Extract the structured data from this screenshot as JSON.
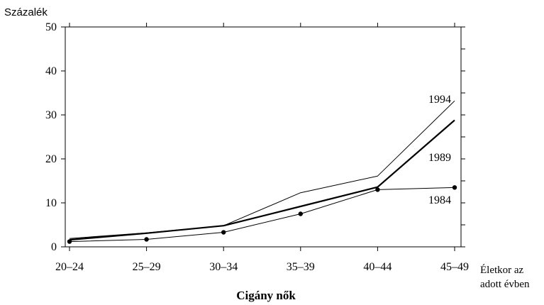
{
  "chart_data": {
    "type": "line",
    "title": "Cigány nők",
    "ylabel": "Százalék",
    "xlabel": [
      "Életkor az",
      "adott évben"
    ],
    "categories": [
      "20–24",
      "25–29",
      "30–34",
      "35–39",
      "40–44",
      "45–49"
    ],
    "ylim": [
      0,
      50
    ],
    "yticks": [
      0,
      10,
      20,
      30,
      40,
      50
    ],
    "grid": false,
    "series": [
      {
        "name": "1994",
        "values": [
          1.9,
          3.2,
          4.8,
          12.3,
          16.1,
          33.2
        ],
        "style": "thin",
        "markers": false
      },
      {
        "name": "1989",
        "values": [
          1.6,
          3.1,
          4.8,
          9.2,
          13.6,
          28.8
        ],
        "style": "thick",
        "markers": false
      },
      {
        "name": "1984",
        "values": [
          1.2,
          1.7,
          3.3,
          7.5,
          13.0,
          13.5
        ],
        "style": "thin",
        "markers": true
      }
    ]
  }
}
